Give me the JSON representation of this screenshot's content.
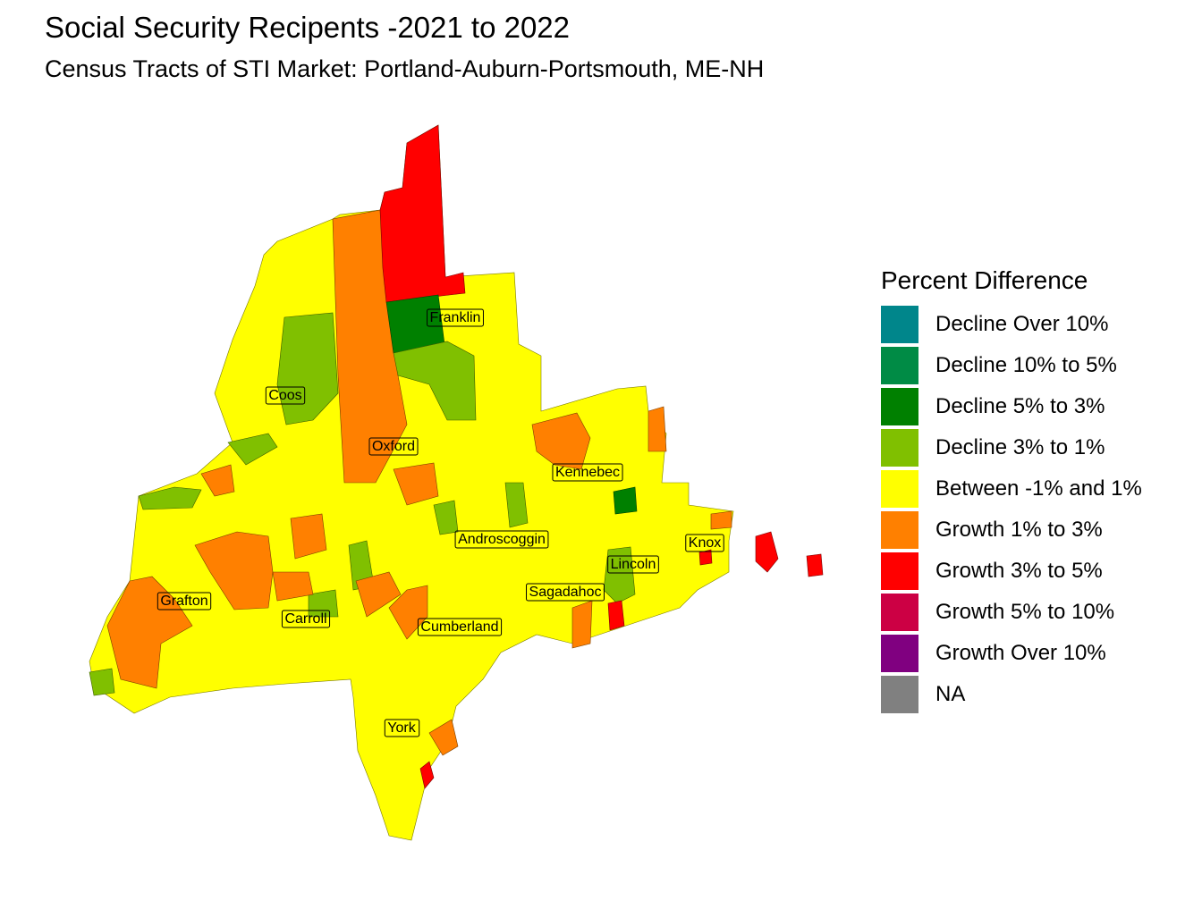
{
  "title": "Social Security Recipents -2021 to 2022",
  "subtitle": "Census Tracts of STI Market: Portland-Auburn-Portsmouth, ME-NH",
  "legend": {
    "title": "Percent Difference",
    "items": [
      {
        "label": "Decline Over 10%",
        "color": "#00868B"
      },
      {
        "label": "Decline 10% to 5%",
        "color": "#008B45"
      },
      {
        "label": "Decline 5% to 3%",
        "color": "#008000"
      },
      {
        "label": "Decline 3% to 1%",
        "color": "#80C000"
      },
      {
        "label": "Between -1% and 1%",
        "color": "#FFFF00"
      },
      {
        "label": "Growth 1% to 3%",
        "color": "#FF8000"
      },
      {
        "label": "Growth 3% to 5%",
        "color": "#FF0000"
      },
      {
        "label": "Growth 5% to 10%",
        "color": "#CC0044"
      },
      {
        "label": "Growth Over 10%",
        "color": "#800080"
      },
      {
        "label": "NA",
        "color": "#808080"
      }
    ]
  },
  "counties": [
    {
      "name": "Franklin"
    },
    {
      "name": "Coos"
    },
    {
      "name": "Oxford"
    },
    {
      "name": "Kennebec"
    },
    {
      "name": "Androscoggin"
    },
    {
      "name": "Knox"
    },
    {
      "name": "Lincoln"
    },
    {
      "name": "Sagadahoc"
    },
    {
      "name": "Grafton"
    },
    {
      "name": "Carroll"
    },
    {
      "name": "Cumberland"
    },
    {
      "name": "York"
    }
  ]
}
